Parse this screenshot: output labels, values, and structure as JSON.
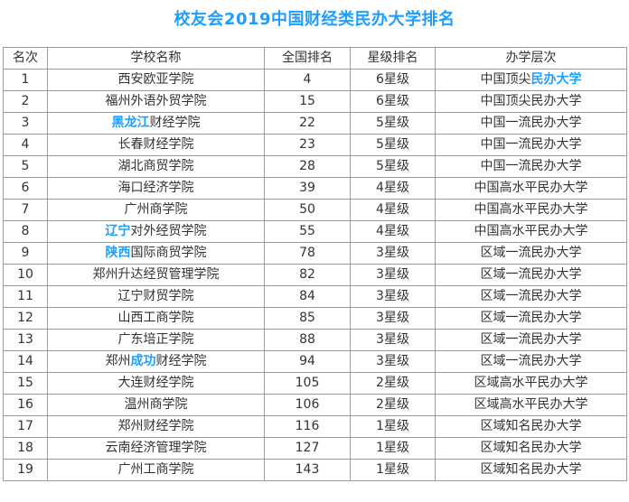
{
  "page": {
    "title": "校友会2019中国财经类民办大学排名"
  },
  "colors": {
    "accent_blue": "#1e9fff",
    "text": "#333333",
    "border": "#9c9c9c",
    "background": "#ffffff"
  },
  "table": {
    "headers": [
      "名次",
      "学校名称",
      "全国排名",
      "星级排名",
      "办学层次"
    ],
    "rows": [
      {
        "rank": "1",
        "school": [
          {
            "t": "西安欧亚学院",
            "hl": false
          }
        ],
        "national_rank": "4",
        "star": "6星级",
        "level": [
          {
            "t": "中国顶尖",
            "hl": false
          },
          {
            "t": "民办大学",
            "hl": true
          }
        ]
      },
      {
        "rank": "2",
        "school": [
          {
            "t": "福州外语外贸学院",
            "hl": false
          }
        ],
        "national_rank": "15",
        "star": "6星级",
        "level": [
          {
            "t": "中国顶尖民办大学",
            "hl": false
          }
        ]
      },
      {
        "rank": "3",
        "school": [
          {
            "t": "黑龙江",
            "hl": true
          },
          {
            "t": "财经学院",
            "hl": false
          }
        ],
        "national_rank": "22",
        "star": "5星级",
        "level": [
          {
            "t": "中国一流民办大学",
            "hl": false
          }
        ]
      },
      {
        "rank": "4",
        "school": [
          {
            "t": "长春财经学院",
            "hl": false
          }
        ],
        "national_rank": "23",
        "star": "5星级",
        "level": [
          {
            "t": "中国一流民办大学",
            "hl": false
          }
        ]
      },
      {
        "rank": "5",
        "school": [
          {
            "t": "湖北商贸学院",
            "hl": false
          }
        ],
        "national_rank": "28",
        "star": "5星级",
        "level": [
          {
            "t": "中国一流民办大学",
            "hl": false
          }
        ]
      },
      {
        "rank": "6",
        "school": [
          {
            "t": "海口经济学院",
            "hl": false
          }
        ],
        "national_rank": "39",
        "star": "4星级",
        "level": [
          {
            "t": "中国高水平民办大学",
            "hl": false
          }
        ]
      },
      {
        "rank": "7",
        "school": [
          {
            "t": "广州商学院",
            "hl": false
          }
        ],
        "national_rank": "50",
        "star": "4星级",
        "level": [
          {
            "t": "中国高水平民办大学",
            "hl": false
          }
        ]
      },
      {
        "rank": "8",
        "school": [
          {
            "t": "辽宁",
            "hl": true
          },
          {
            "t": "对外经贸学院",
            "hl": false
          }
        ],
        "national_rank": "55",
        "star": "4星级",
        "level": [
          {
            "t": "中国高水平民办大学",
            "hl": false
          }
        ]
      },
      {
        "rank": "9",
        "school": [
          {
            "t": "陕西",
            "hl": true
          },
          {
            "t": "国际商贸学院",
            "hl": false
          }
        ],
        "national_rank": "78",
        "star": "3星级",
        "level": [
          {
            "t": "区域一流民办大学",
            "hl": false
          }
        ]
      },
      {
        "rank": "10",
        "school": [
          {
            "t": "郑州升达经贸管理学院",
            "hl": false
          }
        ],
        "national_rank": "82",
        "star": "3星级",
        "level": [
          {
            "t": "区域一流民办大学",
            "hl": false
          }
        ]
      },
      {
        "rank": "11",
        "school": [
          {
            "t": "辽宁财贸学院",
            "hl": false
          }
        ],
        "national_rank": "84",
        "star": "3星级",
        "level": [
          {
            "t": "区域一流民办大学",
            "hl": false
          }
        ]
      },
      {
        "rank": "12",
        "school": [
          {
            "t": "山西工商学院",
            "hl": false
          }
        ],
        "national_rank": "85",
        "star": "3星级",
        "level": [
          {
            "t": "区域一流民办大学",
            "hl": false
          }
        ]
      },
      {
        "rank": "13",
        "school": [
          {
            "t": "广东培正学院",
            "hl": false
          }
        ],
        "national_rank": "88",
        "star": "3星级",
        "level": [
          {
            "t": "区域一流民办大学",
            "hl": false
          }
        ]
      },
      {
        "rank": "14",
        "school": [
          {
            "t": "郑州",
            "hl": false
          },
          {
            "t": "成功",
            "hl": true
          },
          {
            "t": "财经学院",
            "hl": false
          }
        ],
        "national_rank": "94",
        "star": "3星级",
        "level": [
          {
            "t": "区域一流民办大学",
            "hl": false
          }
        ]
      },
      {
        "rank": "15",
        "school": [
          {
            "t": "大连财经学院",
            "hl": false
          }
        ],
        "national_rank": "105",
        "star": "2星级",
        "level": [
          {
            "t": "区域高水平民办大学",
            "hl": false
          }
        ]
      },
      {
        "rank": "16",
        "school": [
          {
            "t": "温州商学院",
            "hl": false
          }
        ],
        "national_rank": "106",
        "star": "2星级",
        "level": [
          {
            "t": "区域高水平民办大学",
            "hl": false
          }
        ]
      },
      {
        "rank": "17",
        "school": [
          {
            "t": "郑州财经学院",
            "hl": false
          }
        ],
        "national_rank": "116",
        "star": "1星级",
        "level": [
          {
            "t": "区域知名民办大学",
            "hl": false
          }
        ]
      },
      {
        "rank": "18",
        "school": [
          {
            "t": "云南经济管理学院",
            "hl": false
          }
        ],
        "national_rank": "127",
        "star": "1星级",
        "level": [
          {
            "t": "区域知名民办大学",
            "hl": false
          }
        ]
      },
      {
        "rank": "19",
        "school": [
          {
            "t": "广州工商学院",
            "hl": false
          }
        ],
        "national_rank": "143",
        "star": "1星级",
        "level": [
          {
            "t": "区域知名民办大学",
            "hl": false
          }
        ]
      }
    ]
  }
}
